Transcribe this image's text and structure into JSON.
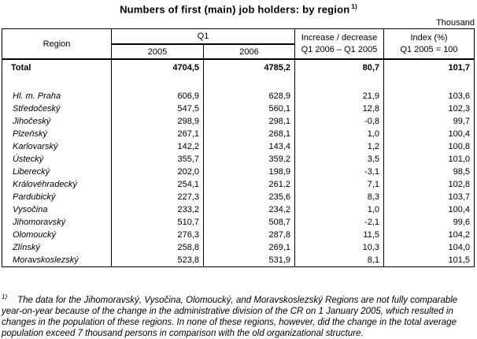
{
  "page": {
    "title": "Numbers of first (main) job holders: by region",
    "title_footnote_ref": "1)",
    "unit_label": "Thousand"
  },
  "table": {
    "header": {
      "region": "Region",
      "q1_group": "Q1",
      "year_2005": "2005",
      "year_2006": "2006",
      "increase_line1": "Increase / decrease",
      "increase_line2": "Q1 2006 – Q1 2005",
      "index_line1": "Index (%)",
      "index_line2": "Q1 2005 = 100"
    },
    "rows": [
      {
        "type": "total",
        "name": "Total",
        "q1_2005": "4704,5",
        "q1_2006": "4785,2",
        "increase": "80,7",
        "index": "101,7"
      },
      {
        "type": "spacer",
        "name": "",
        "q1_2005": "",
        "q1_2006": "",
        "increase": "",
        "index": ""
      },
      {
        "type": "region",
        "name": "Hl. m. Praha",
        "q1_2005": "606,9",
        "q1_2006": "628,9",
        "increase": "21,9",
        "index": "103,6"
      },
      {
        "type": "region",
        "name": "Středočeský",
        "q1_2005": "547,5",
        "q1_2006": "560,1",
        "increase": "12,8",
        "index": "102,3"
      },
      {
        "type": "region",
        "name": "Jihočeský",
        "q1_2005": "298,9",
        "q1_2006": "298,1",
        "increase": "-0,8",
        "index": "99,7"
      },
      {
        "type": "region",
        "name": "Plzeňský",
        "q1_2005": "267,1",
        "q1_2006": "268,1",
        "increase": "1,0",
        "index": "100,4"
      },
      {
        "type": "region",
        "name": "Karlovarský",
        "q1_2005": "142,2",
        "q1_2006": "143,4",
        "increase": "1,2",
        "index": "100,8"
      },
      {
        "type": "region",
        "name": "Ústecký",
        "q1_2005": "355,7",
        "q1_2006": "359,2",
        "increase": "3,5",
        "index": "101,0"
      },
      {
        "type": "region",
        "name": "Liberecký",
        "q1_2005": "202,0",
        "q1_2006": "198,9",
        "increase": "-3,1",
        "index": "98,5"
      },
      {
        "type": "region",
        "name": "Královéhradecký",
        "q1_2005": "254,1",
        "q1_2006": "261,2",
        "increase": "7,1",
        "index": "102,8"
      },
      {
        "type": "region",
        "name": "Pardubický",
        "q1_2005": "227,3",
        "q1_2006": "235,6",
        "increase": "8,3",
        "index": "103,7"
      },
      {
        "type": "region",
        "name": "Vysočina",
        "q1_2005": "233,2",
        "q1_2006": "234,2",
        "increase": "1,0",
        "index": "100,4"
      },
      {
        "type": "region",
        "name": "Jihomoravský",
        "q1_2005": "510,7",
        "q1_2006": "508,7",
        "increase": "-2,1",
        "index": "99,6"
      },
      {
        "type": "region",
        "name": "Olomoucký",
        "q1_2005": "276,3",
        "q1_2006": "287,8",
        "increase": "11,5",
        "index": "104,2"
      },
      {
        "type": "region",
        "name": "Zlínský",
        "q1_2005": "258,8",
        "q1_2006": "269,1",
        "increase": "10,3",
        "index": "104,0"
      },
      {
        "type": "region",
        "name": "Moravskoslezský",
        "q1_2005": "523,8",
        "q1_2006": "531,9",
        "increase": "8,1",
        "index": "101,5"
      }
    ]
  },
  "footnote": {
    "ref": "1)",
    "text": "The data for the Jihomoravský, Vysočina, Olomoucký, and Moravskoslezský Regions are not fully comparable year-on-year because of the change in the administrative division of the CR on 1 January 2005, which resulted in changes in the population of these regions. In none of these regions, however, did the change in the total average population exceed 7 thousand persons in comparison with the old organizational structure."
  }
}
